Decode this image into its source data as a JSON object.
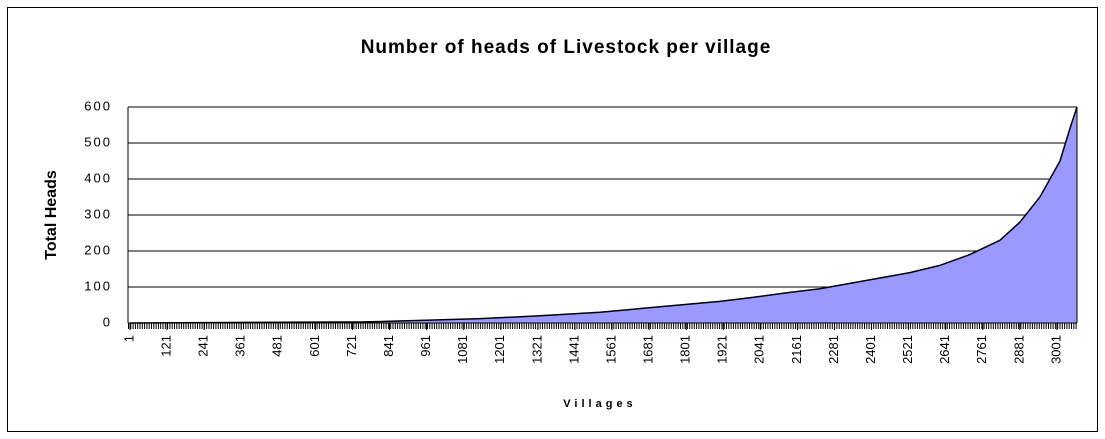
{
  "chart_data": {
    "type": "area",
    "title": "Number of heads of Livestock per village",
    "x_label": "Villages",
    "y_label": "Total Heads",
    "x": [
      1,
      761,
      972,
      1134,
      1328,
      1522,
      1716,
      1910,
      2007,
      2137,
      2234,
      2331,
      2428,
      2525,
      2622,
      2719,
      2817,
      2881,
      2946,
      3011,
      3043,
      3066
    ],
    "values": [
      0,
      3,
      8,
      12,
      20,
      30,
      45,
      60,
      70,
      85,
      95,
      110,
      125,
      140,
      160,
      190,
      230,
      280,
      350,
      450,
      540,
      600
    ],
    "color": "#9999ff",
    "xlim": [
      1,
      3066
    ],
    "xticks": [
      1,
      121,
      241,
      361,
      481,
      601,
      721,
      841,
      961,
      1081,
      1201,
      1321,
      1441,
      1561,
      1681,
      1801,
      1921,
      2041,
      2161,
      2281,
      2401,
      2521,
      2641,
      2761,
      2881,
      3001
    ],
    "ylim": [
      0,
      600
    ],
    "yticks": [
      0,
      100,
      200,
      300,
      400,
      500,
      600
    ],
    "grid": true
  }
}
